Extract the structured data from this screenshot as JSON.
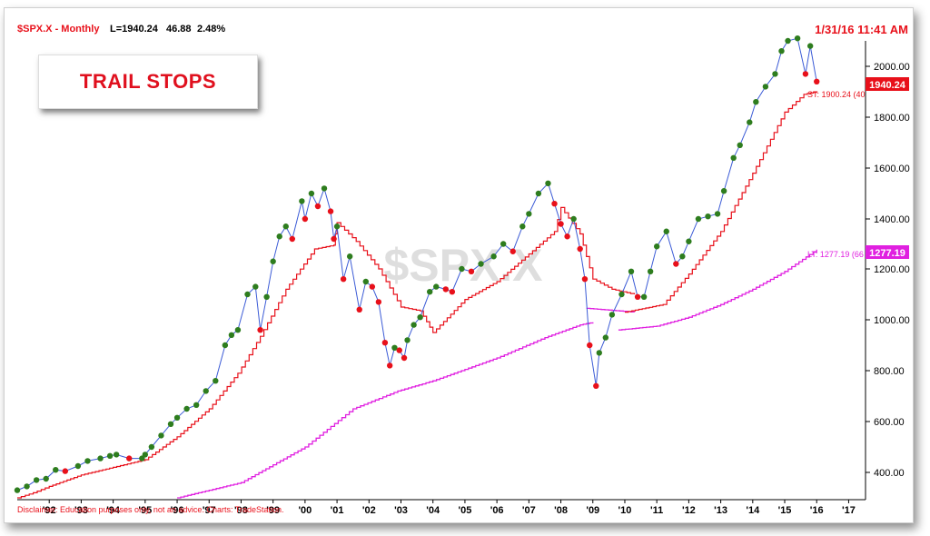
{
  "header": {
    "symbol": "$SPX.X - Monthly",
    "last": "L=1940.24",
    "change": "46.88",
    "pct": "2.48%",
    "timestamp": "1/31/16 11:41 AM"
  },
  "title_box": "TRAIL STOPS",
  "watermark": "$SPX.X",
  "disclaimer": "Disclaimer: Education purposes only, not an advice. Charts: TradeStation.",
  "labels": {
    "last_badge": "1940.24",
    "st_label": "ST: 1900.24 (40",
    "lt_label": "LT: 1277.19 (66",
    "lt_badge": "1277.19"
  },
  "colors": {
    "price_line": "#3b5bd6",
    "up_dot": "#2e7d1e",
    "down_dot": "#e8101a",
    "short_trail": "#e8101a",
    "long_trail": "#e020e0",
    "badge_red": "#e8101a",
    "badge_magenta": "#e020e0"
  },
  "chart_data": {
    "type": "line",
    "y_ticks": [
      "400.00",
      "600.00",
      "800.00",
      "1000.00",
      "1200.00",
      "1400.00",
      "1600.00",
      "1800.00",
      "2000.00"
    ],
    "x_ticks": [
      "'92",
      "'93",
      "'94",
      "'95",
      "'96",
      "'97",
      "'98",
      "'99",
      "'00",
      "'01",
      "'02",
      "'03",
      "'04",
      "'05",
      "'06",
      "'07",
      "'08",
      "'09",
      "'10",
      "'11",
      "'12",
      "'13",
      "'14",
      "'15",
      "'16",
      "'17"
    ],
    "ylim": [
      300,
      2180
    ],
    "xlim": [
      1991.0,
      2017.3
    ],
    "series": [
      {
        "name": "ST",
        "values": "short trailing stop"
      },
      {
        "name": "LT",
        "values": "long trailing stop"
      }
    ],
    "price": [
      [
        1991.0,
        330
      ],
      [
        1991.3,
        345
      ],
      [
        1991.6,
        370
      ],
      [
        1991.9,
        375
      ],
      [
        1992.2,
        410
      ],
      [
        1992.5,
        405
      ],
      [
        1992.9,
        425
      ],
      [
        1993.2,
        445
      ],
      [
        1993.6,
        455
      ],
      [
        1993.9,
        465
      ],
      [
        1994.1,
        470
      ],
      [
        1994.5,
        455
      ],
      [
        1994.9,
        455
      ],
      [
        1995.0,
        470
      ],
      [
        1995.2,
        500
      ],
      [
        1995.5,
        545
      ],
      [
        1995.8,
        590
      ],
      [
        1996.0,
        615
      ],
      [
        1996.3,
        650
      ],
      [
        1996.6,
        665
      ],
      [
        1996.9,
        720
      ],
      [
        1997.2,
        760
      ],
      [
        1997.5,
        900
      ],
      [
        1997.7,
        940
      ],
      [
        1997.9,
        960
      ],
      [
        1998.2,
        1100
      ],
      [
        1998.45,
        1130
      ],
      [
        1998.6,
        960
      ],
      [
        1998.8,
        1090
      ],
      [
        1999.0,
        1230
      ],
      [
        1999.2,
        1330
      ],
      [
        1999.4,
        1370
      ],
      [
        1999.6,
        1320
      ],
      [
        1999.9,
        1470
      ],
      [
        2000.0,
        1400
      ],
      [
        2000.2,
        1500
      ],
      [
        2000.4,
        1450
      ],
      [
        2000.6,
        1520
      ],
      [
        2000.8,
        1430
      ],
      [
        2000.9,
        1320
      ],
      [
        2001.0,
        1370
      ],
      [
        2001.2,
        1160
      ],
      [
        2001.4,
        1250
      ],
      [
        2001.7,
        1040
      ],
      [
        2001.9,
        1150
      ],
      [
        2002.1,
        1130
      ],
      [
        2002.3,
        1070
      ],
      [
        2002.5,
        910
      ],
      [
        2002.65,
        820
      ],
      [
        2002.8,
        890
      ],
      [
        2002.95,
        880
      ],
      [
        2003.1,
        850
      ],
      [
        2003.2,
        920
      ],
      [
        2003.4,
        980
      ],
      [
        2003.6,
        1010
      ],
      [
        2003.9,
        1110
      ],
      [
        2004.1,
        1130
      ],
      [
        2004.4,
        1120
      ],
      [
        2004.6,
        1110
      ],
      [
        2004.9,
        1200
      ],
      [
        2005.2,
        1190
      ],
      [
        2005.5,
        1220
      ],
      [
        2005.9,
        1250
      ],
      [
        2006.2,
        1300
      ],
      [
        2006.5,
        1270
      ],
      [
        2006.8,
        1370
      ],
      [
        2007.0,
        1420
      ],
      [
        2007.3,
        1500
      ],
      [
        2007.6,
        1540
      ],
      [
        2007.8,
        1460
      ],
      [
        2008.0,
        1380
      ],
      [
        2008.2,
        1330
      ],
      [
        2008.4,
        1400
      ],
      [
        2008.6,
        1280
      ],
      [
        2008.75,
        1160
      ],
      [
        2008.9,
        900
      ],
      [
        2009.1,
        740
      ],
      [
        2009.2,
        870
      ],
      [
        2009.4,
        930
      ],
      [
        2009.6,
        1020
      ],
      [
        2009.9,
        1100
      ],
      [
        2010.2,
        1190
      ],
      [
        2010.4,
        1090
      ],
      [
        2010.6,
        1090
      ],
      [
        2010.8,
        1190
      ],
      [
        2011.0,
        1290
      ],
      [
        2011.3,
        1350
      ],
      [
        2011.6,
        1220
      ],
      [
        2011.8,
        1250
      ],
      [
        2012.0,
        1310
      ],
      [
        2012.3,
        1400
      ],
      [
        2012.6,
        1410
      ],
      [
        2012.9,
        1420
      ],
      [
        2013.1,
        1510
      ],
      [
        2013.4,
        1640
      ],
      [
        2013.6,
        1690
      ],
      [
        2013.9,
        1780
      ],
      [
        2014.1,
        1860
      ],
      [
        2014.4,
        1920
      ],
      [
        2014.7,
        1970
      ],
      [
        2014.9,
        2060
      ],
      [
        2015.1,
        2100
      ],
      [
        2015.4,
        2110
      ],
      [
        2015.65,
        1970
      ],
      [
        2015.8,
        2080
      ],
      [
        2016.0,
        1940
      ]
    ],
    "short_trail": [
      [
        1991.0,
        300
      ],
      [
        1991.5,
        320
      ],
      [
        1992.0,
        345
      ],
      [
        1993.0,
        390
      ],
      [
        1994.0,
        420
      ],
      [
        1995.0,
        450
      ],
      [
        1996.0,
        540
      ],
      [
        1997.0,
        650
      ],
      [
        1997.9,
        790
      ],
      [
        1998.6,
        935
      ],
      [
        1999.4,
        1120
      ],
      [
        2000.3,
        1280
      ],
      [
        2000.9,
        1295
      ],
      [
        2001.0,
        1385
      ],
      [
        2001.6,
        1310
      ],
      [
        2002.3,
        1200
      ],
      [
        2003.0,
        1050
      ],
      [
        2003.6,
        1035
      ],
      [
        2004.0,
        950
      ],
      [
        2005.0,
        1080
      ],
      [
        2006.0,
        1150
      ],
      [
        2007.0,
        1260
      ],
      [
        2007.8,
        1350
      ],
      [
        2008.0,
        1445
      ],
      [
        2008.6,
        1340
      ],
      [
        2009.0,
        1160
      ],
      [
        2009.6,
        1120
      ],
      [
        2010.3,
        1100
      ],
      [
        2010.0,
        1030
      ],
      [
        2011.2,
        1060
      ],
      [
        2012.0,
        1180
      ],
      [
        2013.0,
        1350
      ],
      [
        2014.0,
        1580
      ],
      [
        2015.0,
        1820
      ],
      [
        2015.6,
        1890
      ],
      [
        2016.0,
        1900
      ]
    ],
    "long_trail": [
      [
        1996.0,
        300
      ],
      [
        1998.0,
        360
      ],
      [
        2000.0,
        500
      ],
      [
        2001.5,
        650
      ],
      [
        2002.9,
        720
      ],
      [
        2004.0,
        760
      ],
      [
        2006.0,
        850
      ],
      [
        2007.5,
        930
      ],
      [
        2008.6,
        980
      ],
      [
        2009.0,
        990
      ],
      [
        2008.8,
        1045
      ],
      [
        2010.3,
        1030
      ],
      [
        2009.8,
        960
      ],
      [
        2011.0,
        975
      ],
      [
        2012.0,
        1010
      ],
      [
        2013.0,
        1060
      ],
      [
        2014.0,
        1120
      ],
      [
        2015.0,
        1190
      ],
      [
        2016.0,
        1277
      ]
    ]
  }
}
